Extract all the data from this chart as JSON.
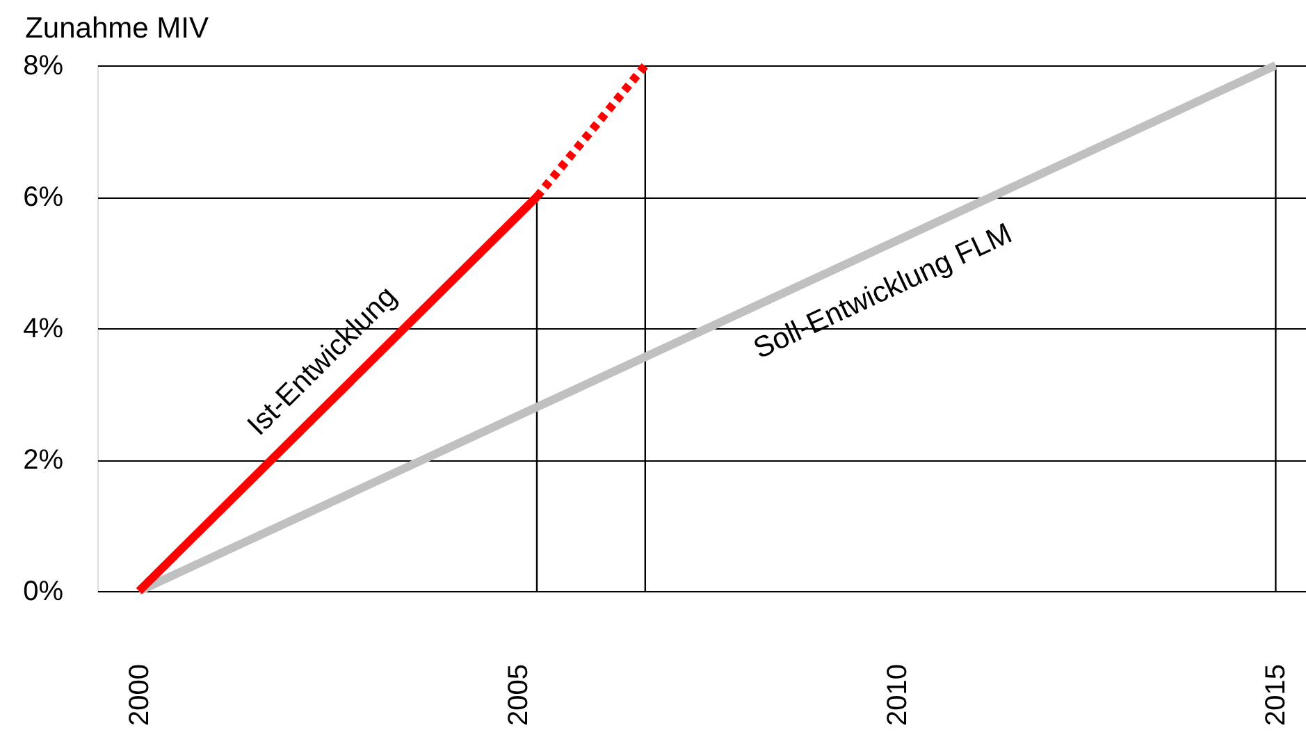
{
  "chart_data": {
    "type": "line",
    "title": "Zunahme MIV",
    "xlim": [
      1999.45,
      2015.4
    ],
    "xticks": [
      2000,
      2005,
      2010,
      2015
    ],
    "ylim": [
      0,
      8
    ],
    "yticks": [
      {
        "value": 0,
        "label": "0%"
      },
      {
        "value": 2,
        "label": "2%"
      },
      {
        "value": 4,
        "label": "4%"
      },
      {
        "value": 6,
        "label": "6%"
      },
      {
        "value": 8,
        "label": "8%"
      }
    ],
    "grid": "y",
    "marker": "none",
    "series": [
      {
        "x": [
          2005.25,
          2005.25
        ],
        "values": [
          0,
          6
        ],
        "color": "#000000"
      },
      {
        "x": [
          2006.68,
          2006.68
        ],
        "values": [
          0,
          8
        ],
        "color": "#000000"
      },
      {
        "x": [
          2015,
          2015
        ],
        "values": [
          0,
          8
        ],
        "color": "#000000"
      },
      {
        "x": [
          2000,
          2015
        ],
        "values": [
          0,
          8
        ],
        "color": "#c0c0c0",
        "line_style": "solid"
      },
      {
        "x": [
          2000,
          2005.25
        ],
        "values": [
          0,
          6
        ],
        "color": "#ff0000",
        "line_style": "solid"
      },
      {
        "x": [
          2005.25,
          2006.68
        ],
        "values": [
          6,
          8
        ],
        "color": "#ff0000",
        "line_style": "dotted"
      }
    ],
    "annotations": [
      "Ist-Entwicklung",
      "Soll-Entwicklung FLM"
    ]
  }
}
